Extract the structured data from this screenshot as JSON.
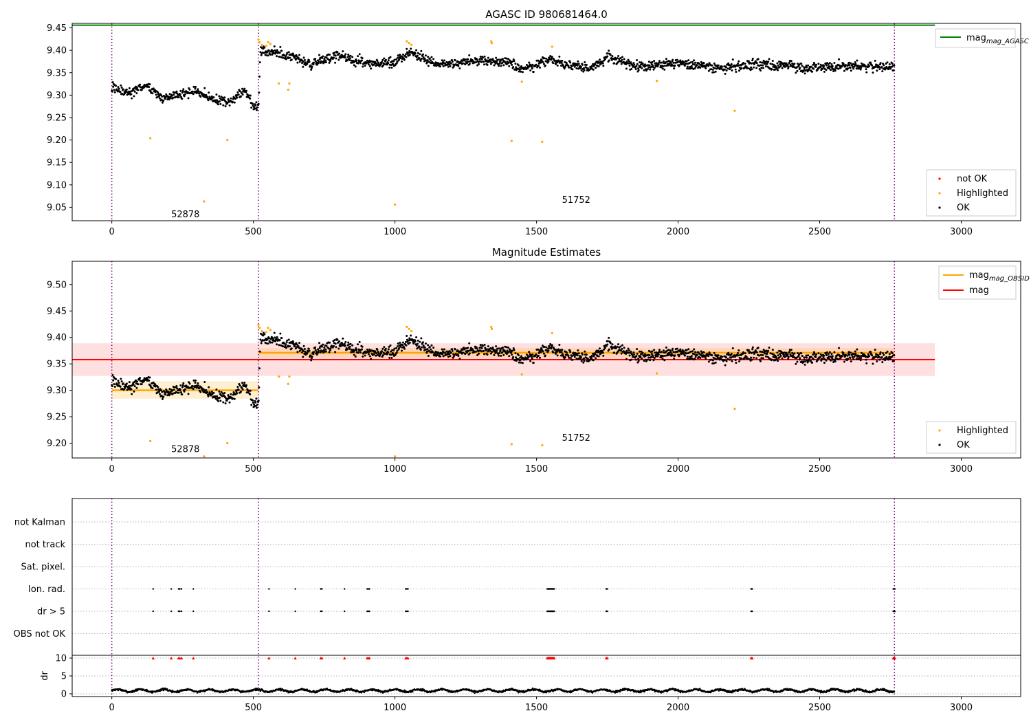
{
  "chart_data": [
    {
      "type": "scatter",
      "title": "AGASC ID 980681464.0",
      "xlim": [
        -140,
        3210
      ],
      "ylim": [
        9.02,
        9.46
      ],
      "xticks": [
        0,
        500,
        1000,
        1500,
        2000,
        2500,
        3000
      ],
      "yticks": [
        "9.05",
        "9.10",
        "9.15",
        "9.20",
        "9.25",
        "9.30",
        "9.35",
        "9.40",
        "9.45"
      ],
      "observations": [
        {
          "label": "52878",
          "start": 0,
          "end": 518,
          "label_x": 260,
          "label_y": 9.034
        },
        {
          "label": "51752",
          "start": 518,
          "end": 2764,
          "label_x": 1640,
          "label_y": 9.066
        }
      ],
      "level_lines": [
        {
          "name": "mag_AGASC",
          "color": "#008000",
          "y": 9.456,
          "x_from": -140,
          "x_to": 2907
        }
      ],
      "series": [
        {
          "name": "not OK",
          "color": "#ff0000"
        },
        {
          "name": "Highlighted",
          "color": "#ffa500"
        },
        {
          "name": "OK",
          "color": "#000000"
        }
      ],
      "ok_trend": [
        [
          0,
          9.318
        ],
        [
          60,
          9.303
        ],
        [
          120,
          9.322
        ],
        [
          180,
          9.292
        ],
        [
          250,
          9.302
        ],
        [
          300,
          9.31
        ],
        [
          350,
          9.292
        ],
        [
          420,
          9.283
        ],
        [
          470,
          9.313
        ],
        [
          505,
          9.27
        ],
        [
          518,
          9.275
        ],
        [
          525,
          9.398
        ],
        [
          600,
          9.393
        ],
        [
          700,
          9.37
        ],
        [
          800,
          9.388
        ],
        [
          900,
          9.37
        ],
        [
          1000,
          9.372
        ],
        [
          1050,
          9.397
        ],
        [
          1150,
          9.37
        ],
        [
          1300,
          9.376
        ],
        [
          1400,
          9.372
        ],
        [
          1450,
          9.357
        ],
        [
          1550,
          9.38
        ],
        [
          1600,
          9.368
        ],
        [
          1700,
          9.36
        ],
        [
          1750,
          9.385
        ],
        [
          1850,
          9.363
        ],
        [
          2000,
          9.372
        ],
        [
          2150,
          9.36
        ],
        [
          2300,
          9.37
        ],
        [
          2450,
          9.36
        ],
        [
          2600,
          9.366
        ],
        [
          2764,
          9.362
        ]
      ],
      "ok_scatter": 0.014,
      "highlighted_points": [
        [
          136,
          9.204
        ],
        [
          326,
          9.063
        ],
        [
          408,
          9.2
        ],
        [
          518,
          9.424
        ],
        [
          522,
          9.418
        ],
        [
          530,
          9.412
        ],
        [
          545,
          9.41
        ],
        [
          552,
          9.418
        ],
        [
          560,
          9.414
        ],
        [
          590,
          9.326
        ],
        [
          623,
          9.312
        ],
        [
          627,
          9.326
        ],
        [
          1000,
          9.056
        ],
        [
          1042,
          9.42
        ],
        [
          1050,
          9.416
        ],
        [
          1058,
          9.412
        ],
        [
          1340,
          9.42
        ],
        [
          1342,
          9.416
        ],
        [
          1412,
          9.198
        ],
        [
          1448,
          9.33
        ],
        [
          1520,
          9.196
        ],
        [
          1555,
          9.408
        ],
        [
          1925,
          9.332
        ],
        [
          2200,
          9.265
        ]
      ],
      "legend": [
        "mag_AGASC",
        "not OK",
        "Highlighted",
        "OK"
      ]
    },
    {
      "type": "scatter",
      "title": "Magnitude Estimates",
      "xlim": [
        -140,
        3210
      ],
      "ylim": [
        9.172,
        9.544
      ],
      "xticks": [
        0,
        500,
        1000,
        1500,
        2000,
        2500,
        3000
      ],
      "yticks": [
        "9.20",
        "9.25",
        "9.30",
        "9.35",
        "9.40",
        "9.45",
        "9.50"
      ],
      "observations": [
        {
          "label": "52878",
          "start": 0,
          "end": 518,
          "label_x": 260,
          "label_y": 9.188
        },
        {
          "label": "51752",
          "start": 518,
          "end": 2764,
          "label_x": 1640,
          "label_y": 9.21
        }
      ],
      "obsid_mag": [
        {
          "start": 0,
          "end": 518,
          "mag": 9.3,
          "band": [
            9.284,
            9.317
          ]
        },
        {
          "start": 518,
          "end": 2764,
          "mag": 9.371,
          "band": [
            9.362,
            9.38
          ]
        }
      ],
      "mag": {
        "value": 9.358,
        "band": [
          9.327,
          9.389
        ],
        "x_from": -140,
        "x_to": 2907
      },
      "series": [
        {
          "name": "Highlighted",
          "color": "#ffa500"
        },
        {
          "name": "OK",
          "color": "#000000"
        }
      ],
      "legend_lines": [
        {
          "name": "mag_OBSID",
          "color": "#ffa500"
        },
        {
          "name": "mag",
          "color": "#ff0000"
        }
      ],
      "legend": [
        "mag_OBSID",
        "mag",
        "Highlighted",
        "OK"
      ]
    },
    {
      "type": "scatter",
      "title": "",
      "xlim": [
        -140,
        3210
      ],
      "xticks": [
        0,
        500,
        1000,
        1500,
        2000,
        2500,
        3000
      ],
      "flag_rows": [
        "not Kalman",
        "not track",
        "Sat. pixel.",
        "Ion. rad.",
        "dr > 5",
        "OBS not OK"
      ],
      "flagged_samples": [
        [
          146,
          1
        ],
        [
          210,
          1
        ],
        [
          236,
          1
        ],
        [
          240,
          1
        ],
        [
          246,
          1
        ],
        [
          288,
          1
        ],
        [
          555,
          1
        ],
        [
          648,
          1
        ],
        [
          738,
          1
        ],
        [
          742,
          1
        ],
        [
          822,
          1
        ],
        [
          902,
          1
        ],
        [
          906,
          1
        ],
        [
          910,
          1
        ],
        [
          1038,
          1
        ],
        [
          1042,
          1
        ],
        [
          1046,
          1
        ],
        [
          1538,
          14
        ],
        [
          1746,
          3
        ],
        [
          2258,
          3
        ],
        [
          2760,
          4
        ]
      ],
      "dr_axis": {
        "ylabel": "dr",
        "yticks": [
          "0",
          "5",
          "10"
        ],
        "limit": 10
      },
      "dr_level": 0.9
    }
  ]
}
